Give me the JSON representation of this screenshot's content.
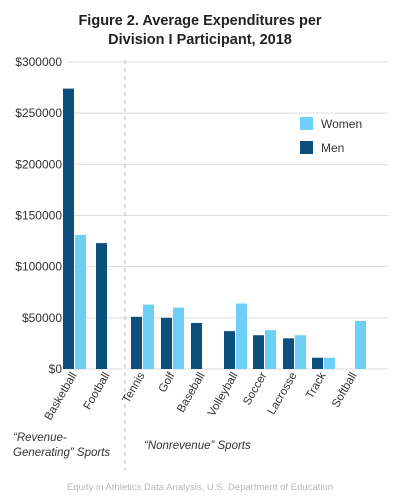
{
  "chart_data": {
    "type": "bar",
    "title_lines": [
      "Figure 2. Average Expenditures per",
      "Division I Participant, 2018"
    ],
    "categories": [
      "Basketball",
      "Football",
      "Tennis",
      "Golf",
      "Baseball",
      "Volleyball",
      "Soccer",
      "Lacrosse",
      "Track",
      "Softball"
    ],
    "series": [
      {
        "name": "Women",
        "color": "#6dcff6",
        "values": [
          131000,
          null,
          63000,
          60000,
          null,
          64000,
          38000,
          33000,
          11000,
          47000
        ]
      },
      {
        "name": "Men",
        "color": "#0d4f7c",
        "values": [
          274000,
          123000,
          51000,
          50000,
          45000,
          37000,
          33000,
          30000,
          11000,
          null
        ]
      }
    ],
    "yticks": [
      0,
      50000,
      100000,
      150000,
      200000,
      250000,
      300000
    ],
    "ytick_labels": [
      "$0",
      "$50000",
      "$100000",
      "$150000",
      "$200000",
      "$250000",
      "$300000"
    ],
    "ylim": [
      0,
      300000
    ],
    "legend_position": "top-right",
    "group_labels": [
      {
        "lines": [
          "“Revenue-",
          "Generating” Sports"
        ]
      },
      {
        "lines": [
          "“Nonrevenue” Sports"
        ]
      }
    ],
    "source": "Equity in Athletics Data Analysis, U.S. Department of Education",
    "colors": {
      "grid": "#dddddd",
      "divider": "#bbbbbb",
      "text": "#333333"
    }
  }
}
